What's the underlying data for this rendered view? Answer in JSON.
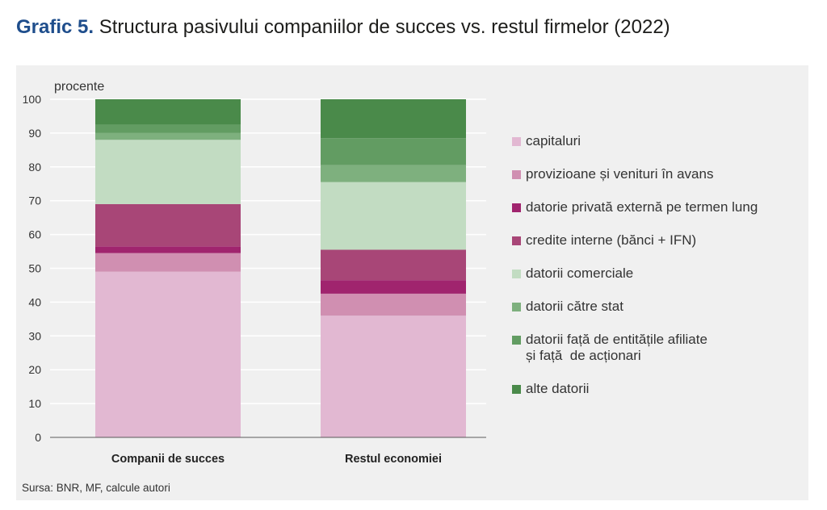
{
  "title": {
    "number": "Grafic 5.",
    "text": "Structura pasivului companiilor de succes vs. restul firmelor (2022)"
  },
  "source": "Sursa: BNR, MF, calcule autori",
  "chart_data": {
    "type": "bar",
    "stacked": true,
    "categories": [
      "Companii de succes",
      "Restul economiei"
    ],
    "ylabel": "procente",
    "ylim": [
      0,
      100
    ],
    "yticks": [
      0,
      10,
      20,
      30,
      40,
      50,
      60,
      70,
      80,
      90,
      100
    ],
    "grid": true,
    "legend_position": "right",
    "series": [
      {
        "name": "capitaluri",
        "color": "#e2b8d2",
        "values": [
          49,
          36
        ]
      },
      {
        "name": "provizioane și venituri în avans",
        "color": "#d08fb1",
        "values": [
          5.5,
          6.5
        ]
      },
      {
        "name": "datorie privată externă pe termen lung",
        "color": "#a0246e",
        "values": [
          2,
          4
        ]
      },
      {
        "name": "credite interne (bănci + IFN)",
        "color": "#a84677",
        "values": [
          12.5,
          9
        ]
      },
      {
        "name": "datorii comerciale",
        "color": "#c2dcc2",
        "values": [
          19,
          20
        ]
      },
      {
        "name": "datorii către stat",
        "color": "#7eb07e",
        "values": [
          2,
          5
        ]
      },
      {
        "name": "datorii față de entitățile afiliate\nși față  de acționari",
        "color": "#629c62",
        "values": [
          2.5,
          8
        ]
      },
      {
        "name": "alte datorii",
        "color": "#4a8a4a",
        "values": [
          7.5,
          11.5
        ]
      }
    ]
  }
}
